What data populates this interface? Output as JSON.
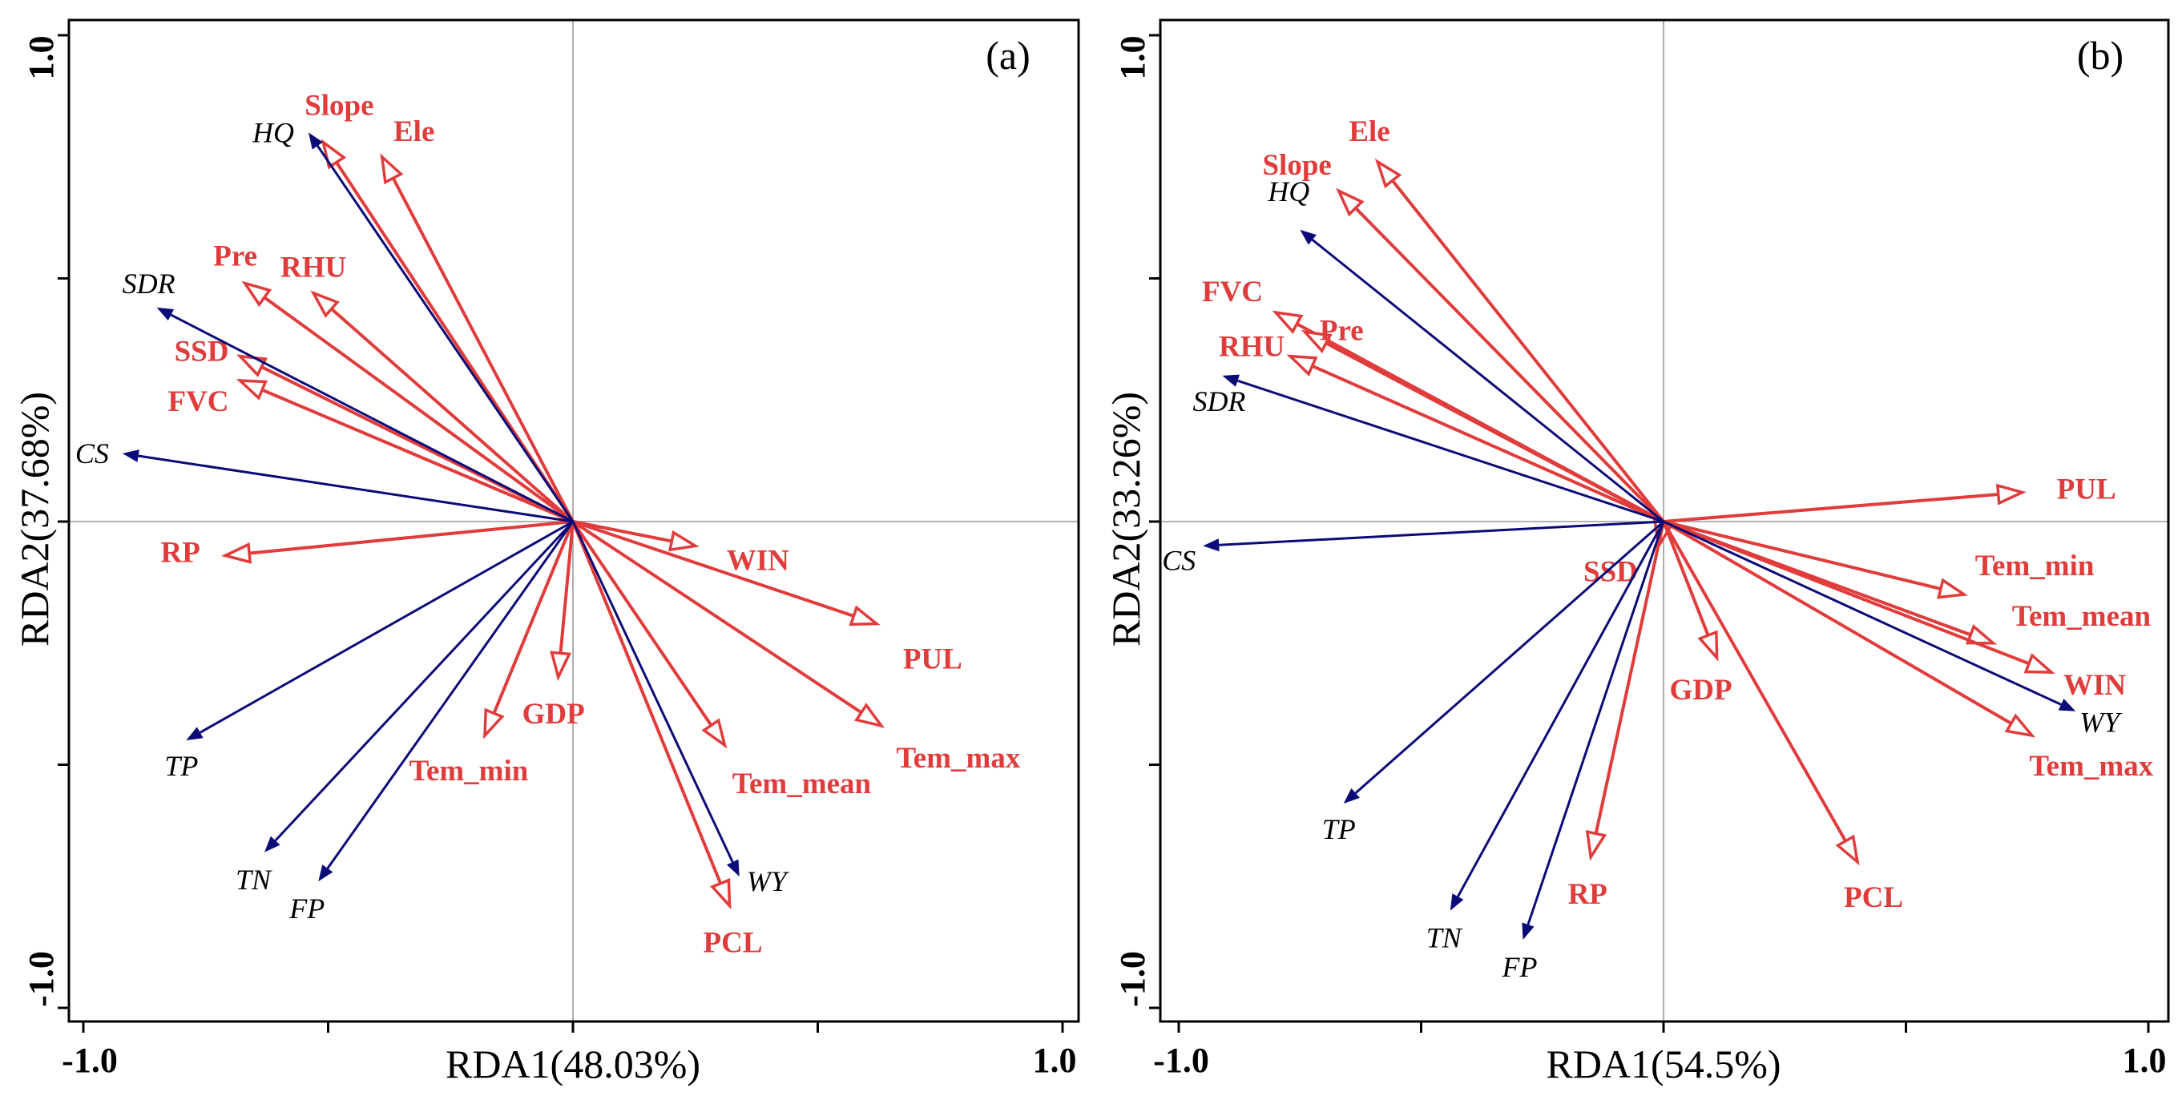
{
  "colors": {
    "response": "#0b0b78",
    "explanatory": "#e03c3c",
    "axis": "#000000",
    "zero": "#9a9a9a"
  },
  "chart_data": [
    {
      "type": "scatter",
      "subtype": "rda-biplot",
      "panel_label": "(a)",
      "xlabel": "RDA1(48.03%)",
      "ylabel": "RDA2(37.68%)",
      "xlim": [
        -1.0,
        1.0
      ],
      "ylim": [
        -1.0,
        1.0
      ],
      "xtick_labels": [
        "-1.0",
        "1.0"
      ],
      "ytick_labels": [
        "-1.0",
        "1.0"
      ],
      "response_vectors": [
        {
          "name": "HQ",
          "x": -0.54,
          "y": 0.8
        },
        {
          "name": "SDR",
          "x": -0.85,
          "y": 0.44
        },
        {
          "name": "CS",
          "x": -0.92,
          "y": 0.14
        },
        {
          "name": "TP",
          "x": -0.79,
          "y": -0.45
        },
        {
          "name": "TN",
          "x": -0.63,
          "y": -0.68
        },
        {
          "name": "FP",
          "x": -0.52,
          "y": -0.74
        },
        {
          "name": "WY",
          "x": 0.34,
          "y": -0.73
        }
      ],
      "explanatory_vectors": [
        {
          "name": "Slope",
          "x": -0.51,
          "y": 0.78
        },
        {
          "name": "Ele",
          "x": -0.39,
          "y": 0.75
        },
        {
          "name": "Pre",
          "x": -0.67,
          "y": 0.49
        },
        {
          "name": "RHU",
          "x": -0.53,
          "y": 0.47
        },
        {
          "name": "SSD",
          "x": -0.68,
          "y": 0.34
        },
        {
          "name": "FVC",
          "x": -0.68,
          "y": 0.29
        },
        {
          "name": "RP",
          "x": -0.71,
          "y": -0.07
        },
        {
          "name": "WIN",
          "x": 0.25,
          "y": -0.05
        },
        {
          "name": "PUL",
          "x": 0.62,
          "y": -0.21
        },
        {
          "name": "GDP",
          "x": -0.03,
          "y": -0.32
        },
        {
          "name": "Tem_min",
          "x": -0.18,
          "y": -0.44
        },
        {
          "name": "Tem_mean",
          "x": 0.31,
          "y": -0.46
        },
        {
          "name": "Tem_max",
          "x": 0.63,
          "y": -0.42
        },
        {
          "name": "PCL",
          "x": 0.32,
          "y": -0.79
        }
      ]
    },
    {
      "type": "scatter",
      "subtype": "rda-biplot",
      "panel_label": "(b)",
      "xlabel": "RDA1(54.5%)",
      "ylabel": "RDA2(33.26%)",
      "xlim": [
        -1.0,
        1.0
      ],
      "ylim": [
        -1.0,
        1.0
      ],
      "xtick_labels": [
        "-1.0",
        "1.0"
      ],
      "ytick_labels": [
        "-1.0",
        "1.0"
      ],
      "response_vectors": [
        {
          "name": "HQ",
          "x": -0.75,
          "y": 0.6
        },
        {
          "name": "SDR",
          "x": -0.91,
          "y": 0.3
        },
        {
          "name": "CS",
          "x": -0.95,
          "y": -0.05
        },
        {
          "name": "TP",
          "x": -0.66,
          "y": -0.58
        },
        {
          "name": "TN",
          "x": -0.44,
          "y": -0.8
        },
        {
          "name": "FP",
          "x": -0.29,
          "y": -0.86
        },
        {
          "name": "WY",
          "x": 0.85,
          "y": -0.39
        }
      ],
      "explanatory_vectors": [
        {
          "name": "Ele",
          "x": -0.59,
          "y": 0.74
        },
        {
          "name": "Slope",
          "x": -0.67,
          "y": 0.68
        },
        {
          "name": "FVC",
          "x": -0.8,
          "y": 0.43
        },
        {
          "name": "Pre",
          "x": -0.74,
          "y": 0.39
        },
        {
          "name": "RHU",
          "x": -0.77,
          "y": 0.34
        },
        {
          "name": "PUL",
          "x": 0.74,
          "y": 0.06
        },
        {
          "name": "SSD",
          "x": -0.01,
          "y": -0.05
        },
        {
          "name": "Tem_min",
          "x": 0.62,
          "y": -0.15
        },
        {
          "name": "Tem_mean",
          "x": 0.68,
          "y": -0.25
        },
        {
          "name": "WIN",
          "x": 0.8,
          "y": -0.31
        },
        {
          "name": "Tem_max",
          "x": 0.76,
          "y": -0.44
        },
        {
          "name": "GDP",
          "x": 0.11,
          "y": -0.28
        },
        {
          "name": "RP",
          "x": -0.15,
          "y": -0.69
        },
        {
          "name": "PCL",
          "x": 0.4,
          "y": -0.7
        }
      ]
    }
  ]
}
